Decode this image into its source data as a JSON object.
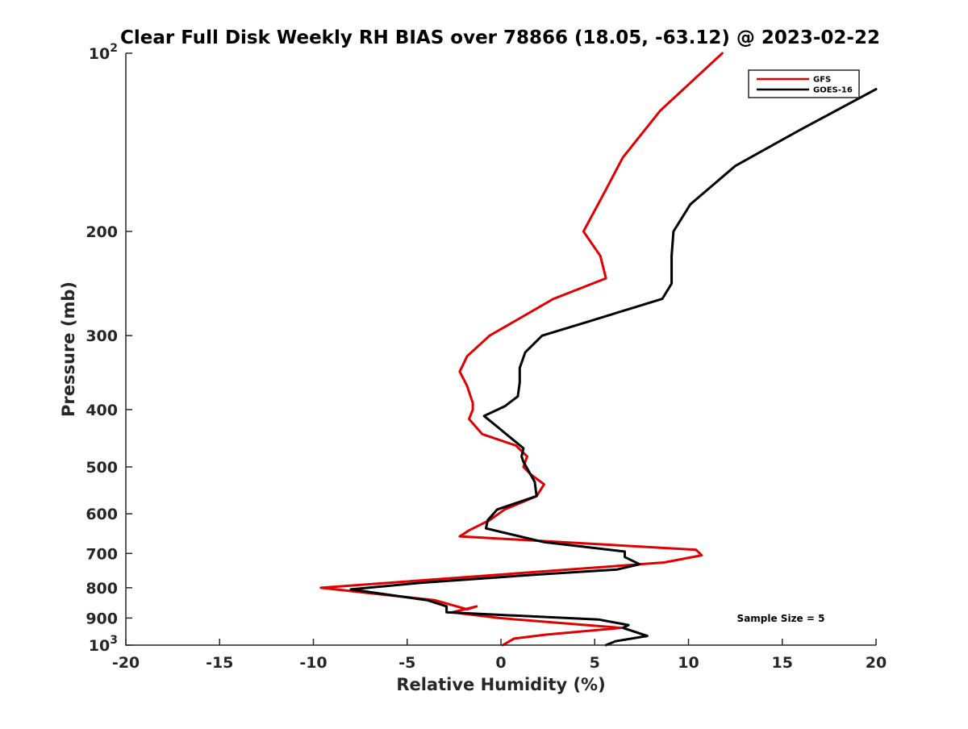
{
  "chart_data": {
    "type": "line",
    "title": "Clear Full Disk Weekly RH BIAS over 78866 (18.05, -63.12) @ 2023-02-22",
    "xlabel": "Relative Humidity (%)",
    "ylabel": "Pressure (mb)",
    "xlim": [
      -20,
      20
    ],
    "ylim": [
      100,
      1000
    ],
    "y_scale": "log",
    "y_reversed": true,
    "x_ticks": [
      -20,
      -15,
      -10,
      -5,
      0,
      5,
      10,
      15,
      20
    ],
    "y_ticks": [
      {
        "value": 100,
        "label": "10",
        "sup": "2"
      },
      {
        "value": 200,
        "label": "200",
        "sup": ""
      },
      {
        "value": 300,
        "label": "300",
        "sup": ""
      },
      {
        "value": 400,
        "label": "400",
        "sup": ""
      },
      {
        "value": 500,
        "label": "500",
        "sup": ""
      },
      {
        "value": 600,
        "label": "600",
        "sup": ""
      },
      {
        "value": 700,
        "label": "700",
        "sup": ""
      },
      {
        "value": 800,
        "label": "800",
        "sup": ""
      },
      {
        "value": 900,
        "label": "900",
        "sup": ""
      },
      {
        "value": 1000,
        "label": "10",
        "sup": "3"
      }
    ],
    "grid": false,
    "legend_position": "top-right",
    "series": [
      {
        "name": "GFS",
        "color": "#e00000",
        "x": [
          11.8,
          8.5,
          6.5,
          5.6,
          4.4,
          5.3,
          5.6,
          2.8,
          -0.6,
          -1.8,
          -2.2,
          -1.8,
          -1.5,
          -1.5,
          -1.7,
          -1.0,
          0.8,
          1.4,
          1.2,
          1.6,
          2.3,
          1.9,
          0.2,
          -0.6,
          -1.7,
          -2.2,
          10.4,
          10.7,
          8.7,
          -9.6,
          -3.5,
          -1.8,
          -1.3,
          -2.6,
          -0.1,
          6.4,
          2.4,
          0.7,
          0.1
        ],
        "y": [
          100,
          125,
          150,
          170,
          200,
          220,
          240,
          260,
          300,
          325,
          345,
          365,
          390,
          400,
          415,
          440,
          460,
          480,
          500,
          515,
          535,
          560,
          590,
          615,
          640,
          655,
          690,
          705,
          725,
          800,
          840,
          870,
          860,
          880,
          900,
          935,
          960,
          975,
          1000
        ]
      },
      {
        "name": "GOES-16",
        "color": "#000000",
        "x": [
          20.0,
          15.9,
          12.5,
          10.1,
          9.2,
          9.1,
          9.1,
          8.6,
          4.5,
          2.2,
          1.3,
          1.0,
          1.0,
          0.9,
          0.2,
          -0.9,
          -0.1,
          1.2,
          1.1,
          1.2,
          1.8,
          1.9,
          -0.2,
          -0.7,
          -0.8,
          2.3,
          6.6,
          6.6,
          7.4,
          6.2,
          1.9,
          -4.3,
          -8.0,
          -3.9,
          -2.9,
          -2.9,
          5.2,
          6.8,
          6.5,
          7.8,
          6.1,
          5.6
        ],
        "y": [
          115,
          135,
          155,
          180,
          200,
          220,
          245,
          260,
          285,
          300,
          320,
          340,
          360,
          380,
          395,
          410,
          430,
          465,
          480,
          490,
          530,
          560,
          590,
          615,
          635,
          670,
          695,
          710,
          730,
          745,
          760,
          785,
          805,
          840,
          860,
          880,
          905,
          925,
          935,
          965,
          985,
          1000
        ]
      }
    ],
    "annotations": [
      "Sample Size = 5"
    ]
  }
}
